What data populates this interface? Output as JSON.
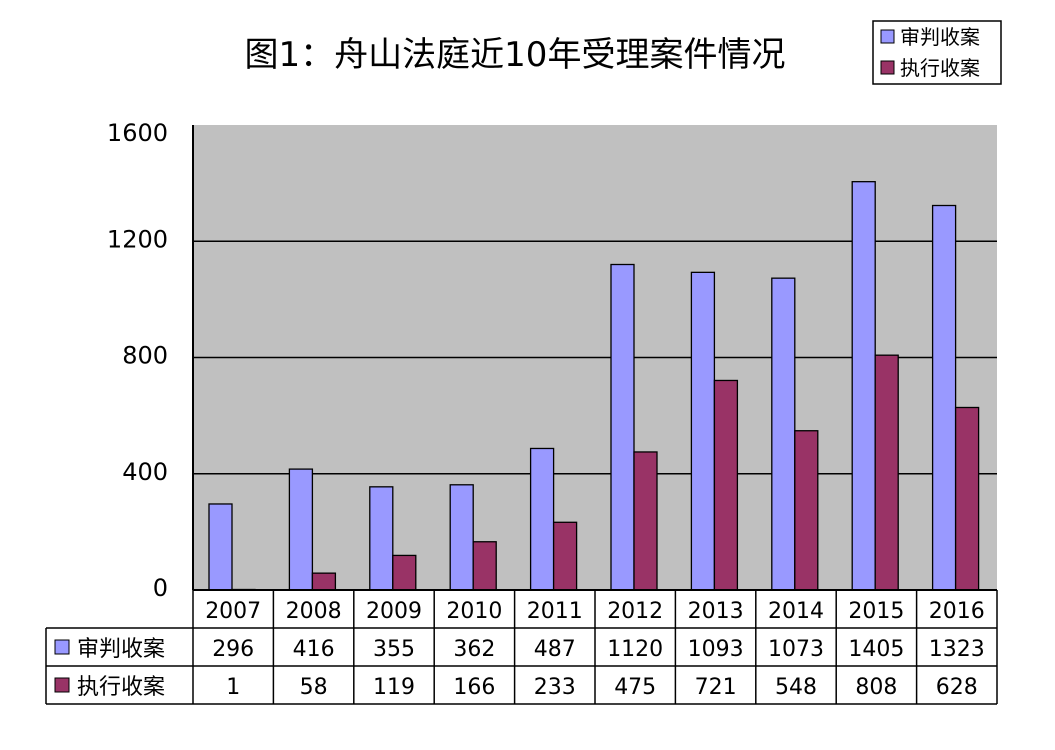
{
  "chart_data": {
    "type": "bar",
    "title": "图1：舟山法庭近10年受理案件情况",
    "categories": [
      "2007",
      "2008",
      "2009",
      "2010",
      "2011",
      "2012",
      "2013",
      "2014",
      "2015",
      "2016"
    ],
    "series": [
      {
        "name": "审判收案",
        "color": "#9999ff",
        "values": [
          296,
          416,
          355,
          362,
          487,
          1120,
          1093,
          1073,
          1405,
          1323
        ]
      },
      {
        "name": "执行收案",
        "color": "#993366",
        "values": [
          1,
          58,
          119,
          166,
          233,
          475,
          721,
          548,
          808,
          628
        ]
      }
    ],
    "ylim": [
      0,
      1600
    ],
    "yticks": [
      "0",
      "400",
      "800",
      "1200",
      "1600"
    ],
    "xlabel": "",
    "ylabel": "",
    "grid": true,
    "plot_background": "#c0c0c0",
    "legend_position": "top-right",
    "data_table": true
  }
}
